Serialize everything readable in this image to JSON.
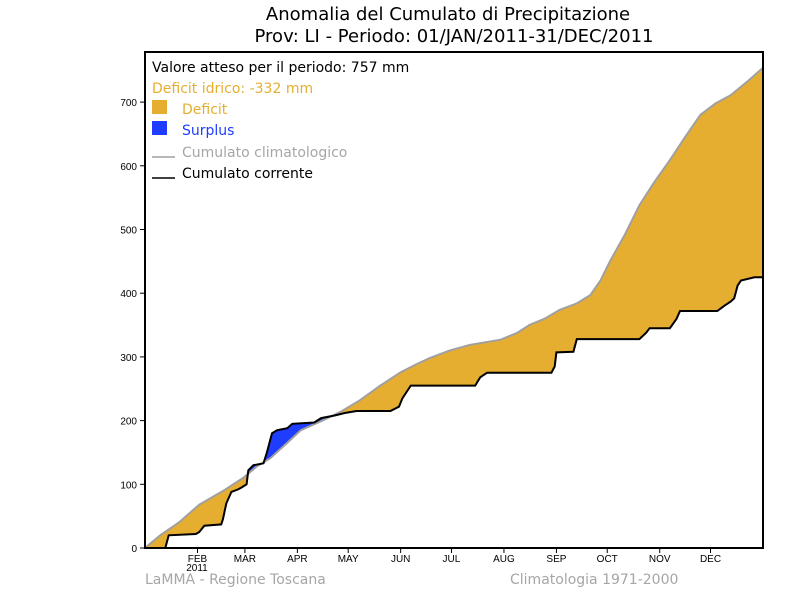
{
  "chart_data": {
    "type": "area",
    "title": "Anomalia del Cumulato di Precipitazione",
    "subtitle": "Prov: LI - Periodo: 01/JAN/2011-31/DEC/2011",
    "xlabel": "",
    "ylabel": "",
    "xlim": [
      0,
      365
    ],
    "ylim": [
      0,
      780
    ],
    "grid": false,
    "y_ticks": [
      0,
      100,
      200,
      300,
      400,
      500,
      600,
      700
    ],
    "x_ticks": [
      {
        "day": 31,
        "label": "FEB"
      },
      {
        "day": 59,
        "label": "MAR"
      },
      {
        "day": 90,
        "label": "APR"
      },
      {
        "day": 120,
        "label": "MAY"
      },
      {
        "day": 151,
        "label": "JUN"
      },
      {
        "day": 181,
        "label": "JUL"
      },
      {
        "day": 212,
        "label": "AUG"
      },
      {
        "day": 243,
        "label": "SEP"
      },
      {
        "day": 273,
        "label": "OCT"
      },
      {
        "day": 304,
        "label": "NOV"
      },
      {
        "day": 334,
        "label": "DEC"
      }
    ],
    "x_year_label": "2011",
    "legend_position": "top-left",
    "legend": {
      "expected": "Valore atteso per il periodo: 757 mm",
      "deficit_text": "Deficit idrico: -332 mm",
      "deficit_label": "Deficit",
      "surplus_label": "Surplus",
      "clim_label": "Cumulato climatologico",
      "current_label": "Cumulato corrente"
    },
    "colors": {
      "deficit": "#e6ae30",
      "surplus": "#1f3dff",
      "climatological": "#a0a0a0",
      "current": "#000000"
    },
    "series": [
      {
        "name": "Cumulato climatologico",
        "points": [
          [
            0,
            0
          ],
          [
            9,
            20
          ],
          [
            20,
            40
          ],
          [
            32,
            68
          ],
          [
            47,
            91
          ],
          [
            58,
            110
          ],
          [
            66,
            128
          ],
          [
            74,
            141
          ],
          [
            84,
            165
          ],
          [
            92,
            185
          ],
          [
            104,
            199
          ],
          [
            115,
            213
          ],
          [
            127,
            232
          ],
          [
            139,
            255
          ],
          [
            151,
            276
          ],
          [
            160,
            288
          ],
          [
            168,
            298
          ],
          [
            180,
            310
          ],
          [
            192,
            319
          ],
          [
            210,
            327
          ],
          [
            220,
            338
          ],
          [
            227,
            350
          ],
          [
            236,
            360
          ],
          [
            245,
            374
          ],
          [
            255,
            384
          ],
          [
            263,
            397
          ],
          [
            269,
            420
          ],
          [
            275,
            452
          ],
          [
            283,
            490
          ],
          [
            292,
            538
          ],
          [
            301,
            575
          ],
          [
            310,
            609
          ],
          [
            319,
            645
          ],
          [
            328,
            680
          ],
          [
            337,
            698
          ],
          [
            346,
            711
          ],
          [
            356,
            733
          ],
          [
            365,
            754
          ]
        ]
      },
      {
        "name": "Cumulato corrente",
        "points": [
          [
            0,
            0
          ],
          [
            12,
            0
          ],
          [
            14,
            20
          ],
          [
            30,
            22
          ],
          [
            32,
            25
          ],
          [
            35,
            35
          ],
          [
            45,
            37
          ],
          [
            46,
            45
          ],
          [
            48,
            70
          ],
          [
            51,
            88
          ],
          [
            55,
            92
          ],
          [
            57,
            95
          ],
          [
            60,
            100
          ],
          [
            61,
            122
          ],
          [
            64,
            130
          ],
          [
            70,
            133
          ],
          [
            72,
            150
          ],
          [
            75,
            180
          ],
          [
            78,
            185
          ],
          [
            84,
            188
          ],
          [
            87,
            195
          ],
          [
            100,
            197
          ],
          [
            104,
            204
          ],
          [
            112,
            208
          ],
          [
            118,
            212
          ],
          [
            125,
            215
          ],
          [
            145,
            215
          ],
          [
            150,
            222
          ],
          [
            152,
            235
          ],
          [
            157,
            255
          ],
          [
            195,
            255
          ],
          [
            198,
            268
          ],
          [
            202,
            275
          ],
          [
            240,
            275
          ],
          [
            242,
            285
          ],
          [
            243,
            307
          ],
          [
            253,
            308
          ],
          [
            255,
            328
          ],
          [
            292,
            328
          ],
          [
            296,
            338
          ],
          [
            298,
            345
          ],
          [
            310,
            345
          ],
          [
            314,
            360
          ],
          [
            316,
            372
          ],
          [
            338,
            372
          ],
          [
            342,
            380
          ],
          [
            346,
            387
          ],
          [
            348,
            392
          ],
          [
            350,
            412
          ],
          [
            352,
            420
          ],
          [
            360,
            425
          ],
          [
            365,
            425
          ]
        ]
      }
    ]
  },
  "footer": {
    "left": "LaMMA - Regione Toscana",
    "right": "Climatologia 1971-2000"
  }
}
